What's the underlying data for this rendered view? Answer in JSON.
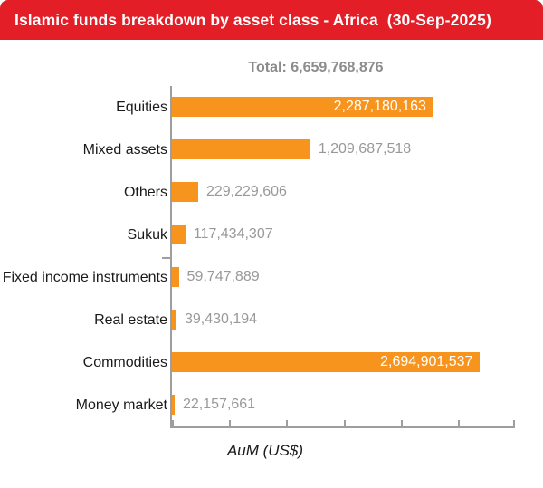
{
  "header": {
    "title": "Islamic funds breakdown by asset class - Africa  (30-Sep-2025)",
    "background_color": "#E31E26",
    "text_color": "#FFFFFF"
  },
  "total": {
    "label": "Total:",
    "value": "6,659,768,876"
  },
  "chart_data": {
    "type": "bar",
    "orientation": "horizontal",
    "title": "Islamic funds breakdown by asset class - Africa (30-Sep-2025)",
    "categories": [
      "Equities",
      "Mixed assets",
      "Others",
      "Sukuk",
      "Fixed income instruments",
      "Real estate",
      "Commodities",
      "Money market"
    ],
    "values": [
      2287180163,
      1209687518,
      229229606,
      117434307,
      59747889,
      39430194,
      2694901537,
      22157661
    ],
    "values_formatted": [
      "2,287,180,163",
      "1,209,687,518",
      "229,229,606",
      "117,434,307",
      "59,747,889",
      "39,430,194",
      "2,694,901,537",
      "22,157,661"
    ],
    "total_value": 6659768876,
    "xlabel": "AuM (US$)",
    "ylabel": "",
    "xlim": [
      0,
      3000000000
    ],
    "x_tick_interval": 500000000,
    "grid": false,
    "legend": false,
    "bar_color": "#F7941E",
    "axis_color": "#9E9E9E",
    "value_label_color_outside": "#999999",
    "value_label_color_inside": "#FFFFFF",
    "category_label_color": "#1A1A1A"
  }
}
